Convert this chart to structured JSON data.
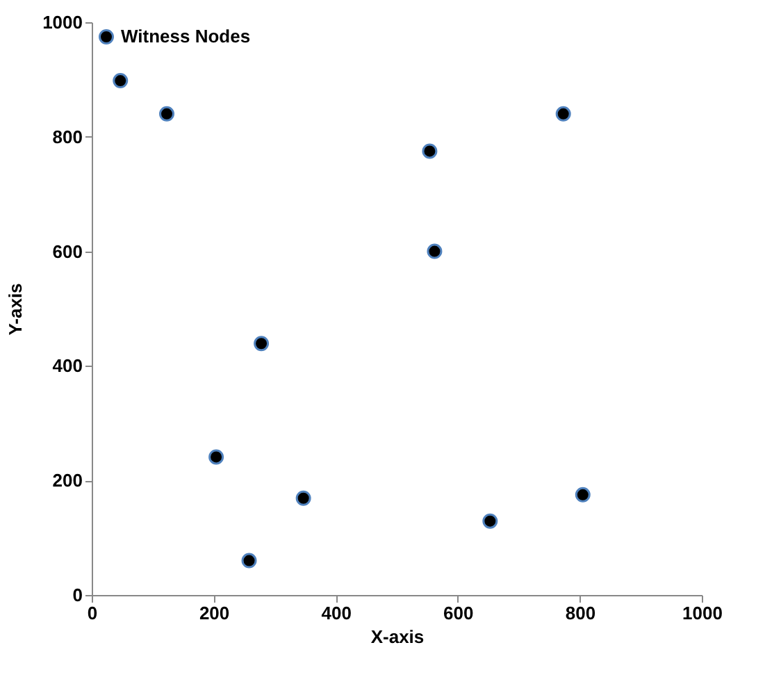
{
  "chart_data": {
    "type": "scatter",
    "xlabel": "X-axis",
    "ylabel": "Y-axis",
    "x": [
      47,
      123,
      278,
      204,
      347,
      258,
      773,
      554,
      562,
      653,
      805
    ],
    "series": [
      {
        "name": "Witness Nodes",
        "color": "#000000",
        "values": [
          898,
          840,
          439,
          241,
          169,
          60,
          840,
          775,
          600,
          129,
          175
        ]
      }
    ],
    "xlim": [
      0,
      1000
    ],
    "ylim": [
      0,
      1000
    ],
    "xticks": [
      0,
      200,
      400,
      600,
      800,
      1000
    ],
    "yticks": [
      0,
      200,
      400,
      600,
      800,
      1000
    ],
    "grid": false,
    "legend": "top left",
    "marker": "circle"
  }
}
